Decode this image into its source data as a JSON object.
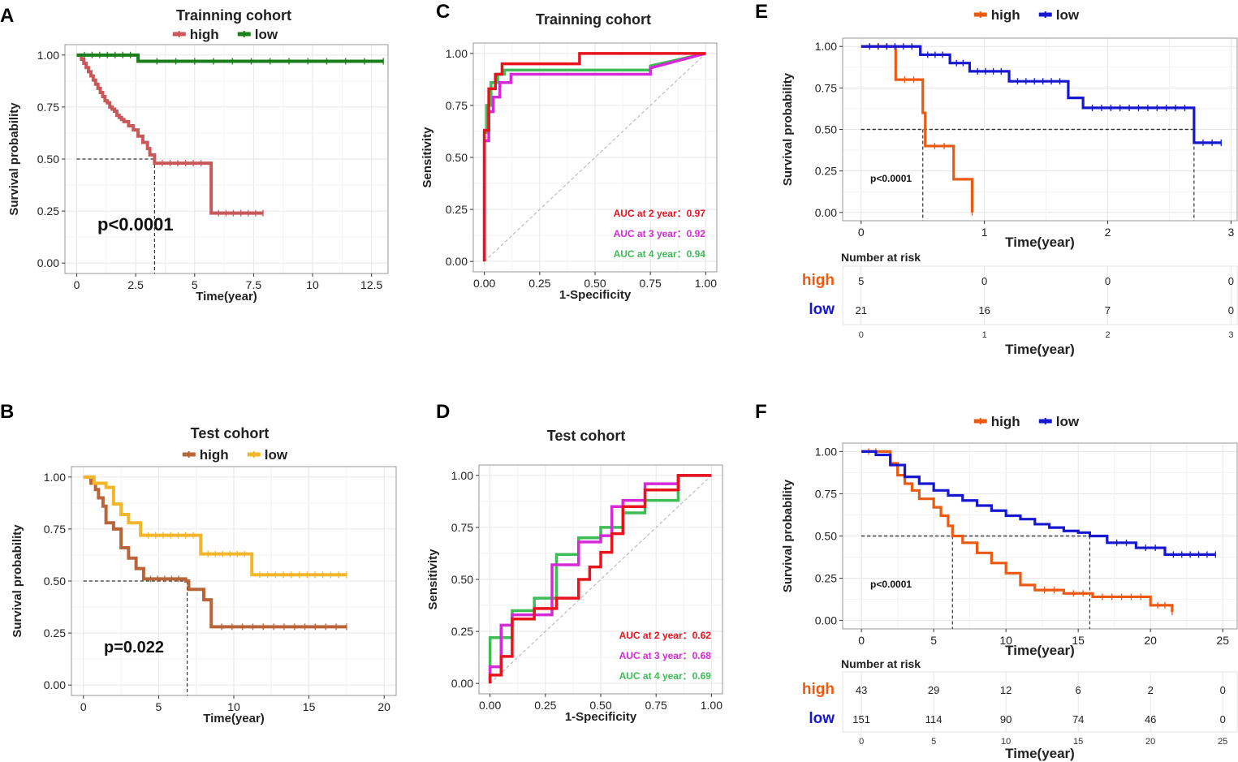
{
  "figure": {
    "panels": {
      "A": {
        "label": "A"
      },
      "B": {
        "label": "B"
      },
      "C": {
        "label": "C"
      },
      "D": {
        "label": "D"
      },
      "E": {
        "label": "E"
      },
      "F": {
        "label": "F"
      }
    }
  },
  "colors": {
    "A_high": "#c9585a",
    "A_low": "#1a7f1a",
    "B_high": "#b8653a",
    "B_low": "#f3b52a",
    "roc_2": "#e8131d",
    "roc_3": "#d62ad8",
    "roc_4": "#3ebd57",
    "E_high": "#ec5a12",
    "E_low": "#1717d0",
    "median": "#333333",
    "diag": "#bbbbbb"
  },
  "chart_data": [
    {
      "panel": "A",
      "type": "line",
      "title": "Trainning cohort",
      "legend": [
        "high",
        "low"
      ],
      "xlabel": "Time(year)",
      "ylabel": "Survival probability",
      "xlim": [
        -0.5,
        13.2
      ],
      "ylim": [
        -0.05,
        1.05
      ],
      "xticks": [
        "0",
        "2.5",
        "5",
        "7.5",
        "10",
        "12.5"
      ],
      "xtick_values": [
        0,
        2.5,
        5,
        7.5,
        10,
        12.5
      ],
      "yticks": [
        "0.00",
        "0.25",
        "0.50",
        "0.75",
        "1.00"
      ],
      "ytick_values": [
        0,
        0.25,
        0.5,
        0.75,
        1
      ],
      "pvalue": "p<0.0001",
      "median_x": [
        3.3
      ],
      "series": [
        {
          "name": "high",
          "x": [
            0,
            0.2,
            0.3,
            0.4,
            0.5,
            0.6,
            0.7,
            0.8,
            0.9,
            1.0,
            1.1,
            1.2,
            1.3,
            1.4,
            1.5,
            1.6,
            1.7,
            1.8,
            1.9,
            2.0,
            2.2,
            2.4,
            2.6,
            2.8,
            3.0,
            3.1,
            3.3,
            5.6,
            5.7,
            7.9
          ],
          "y": [
            1.0,
            0.98,
            0.96,
            0.94,
            0.92,
            0.9,
            0.88,
            0.86,
            0.84,
            0.82,
            0.8,
            0.78,
            0.77,
            0.75,
            0.74,
            0.73,
            0.71,
            0.7,
            0.69,
            0.68,
            0.66,
            0.64,
            0.61,
            0.58,
            0.55,
            0.52,
            0.48,
            0.48,
            0.24,
            0.24
          ]
        },
        {
          "name": "low",
          "x": [
            0,
            2.6,
            2.6,
            13.0
          ],
          "y": [
            1.0,
            1.0,
            0.97,
            0.97
          ]
        }
      ]
    },
    {
      "panel": "B",
      "type": "line",
      "title": "Test cohort",
      "legend": [
        "high",
        "low"
      ],
      "xlabel": "Time(year)",
      "ylabel": "Survival probability",
      "xlim": [
        -0.8,
        20.8
      ],
      "ylim": [
        -0.05,
        1.05
      ],
      "xticks": [
        "0",
        "5",
        "10",
        "15",
        "20"
      ],
      "xtick_values": [
        0,
        5,
        10,
        15,
        20
      ],
      "yticks": [
        "0.00",
        "0.25",
        "0.50",
        "0.75",
        "1.00"
      ],
      "ytick_values": [
        0,
        0.25,
        0.5,
        0.75,
        1
      ],
      "pvalue": "p=0.022",
      "median_x": [
        6.9
      ],
      "series": [
        {
          "name": "high",
          "x": [
            0,
            0.5,
            0.8,
            1.0,
            1.3,
            1.5,
            2.0,
            2.5,
            3.0,
            3.5,
            4.0,
            6.8,
            7.0,
            8.0,
            8.5,
            17.5
          ],
          "y": [
            1.0,
            0.97,
            0.94,
            0.9,
            0.86,
            0.78,
            0.75,
            0.66,
            0.61,
            0.56,
            0.51,
            0.5,
            0.46,
            0.41,
            0.28,
            0.28
          ]
        },
        {
          "name": "low",
          "x": [
            0,
            0.7,
            1.5,
            2.0,
            2.5,
            3.0,
            3.8,
            7.8,
            11.2,
            17.5
          ],
          "y": [
            1.0,
            0.97,
            0.95,
            0.87,
            0.82,
            0.78,
            0.72,
            0.63,
            0.53,
            0.53
          ]
        }
      ]
    },
    {
      "panel": "C",
      "type": "line",
      "title": "Trainning cohort",
      "xlabel": "1-Specificity",
      "ylabel": "Sensitivity",
      "xlim": [
        -0.05,
        1.05
      ],
      "ylim": [
        -0.05,
        1.05
      ],
      "xticks": [
        "0.00",
        "0.25",
        "0.50",
        "0.75",
        "1.00"
      ],
      "xtick_values": [
        0,
        0.25,
        0.5,
        0.75,
        1
      ],
      "yticks": [
        "0.00",
        "0.25",
        "0.50",
        "0.75",
        "1.00"
      ],
      "ytick_values": [
        0,
        0.25,
        0.5,
        0.75,
        1
      ],
      "auc_labels": [
        "AUC at 2 year：0.97",
        "AUC at 3 year：0.92",
        "AUC at 4 year：0.94"
      ],
      "series": [
        {
          "name": "AUC at 2 year",
          "auc": 0.97,
          "x": [
            0,
            0,
            0.02,
            0.02,
            0.05,
            0.05,
            0.08,
            0.08,
            0.43,
            0.43,
            0.75,
            0.75,
            1.0
          ],
          "y": [
            0,
            0.63,
            0.63,
            0.83,
            0.83,
            0.9,
            0.9,
            0.95,
            0.95,
            1.0,
            1.0,
            1.0,
            1.0
          ]
        },
        {
          "name": "AUC at 3 year",
          "auc": 0.92,
          "x": [
            0,
            0,
            0.02,
            0.02,
            0.04,
            0.04,
            0.07,
            0.07,
            0.12,
            0.12,
            0.75,
            0.75,
            1.0
          ],
          "y": [
            0,
            0.58,
            0.58,
            0.72,
            0.72,
            0.79,
            0.79,
            0.86,
            0.86,
            0.9,
            0.9,
            0.93,
            1.0
          ]
        },
        {
          "name": "AUC at 4 year",
          "auc": 0.94,
          "x": [
            0,
            0,
            0.01,
            0.01,
            0.03,
            0.03,
            0.06,
            0.06,
            0.09,
            0.09,
            0.75,
            0.75,
            1.0
          ],
          "y": [
            0,
            0.62,
            0.62,
            0.75,
            0.75,
            0.86,
            0.86,
            0.9,
            0.9,
            0.92,
            0.92,
            0.94,
            1.0
          ]
        }
      ]
    },
    {
      "panel": "D",
      "type": "line",
      "title": "Test cohort",
      "xlabel": "1-Specificity",
      "ylabel": "Sensitivity",
      "xlim": [
        -0.05,
        1.05
      ],
      "ylim": [
        -0.05,
        1.05
      ],
      "xticks": [
        "0.00",
        "0.25",
        "0.50",
        "0.75",
        "1.00"
      ],
      "xtick_values": [
        0,
        0.25,
        0.5,
        0.75,
        1
      ],
      "yticks": [
        "0.00",
        "0.25",
        "0.50",
        "0.75",
        "1.00"
      ],
      "ytick_values": [
        0,
        0.25,
        0.5,
        0.75,
        1
      ],
      "auc_labels": [
        "AUC at 2 year：0.62",
        "AUC at 3 year：0.68",
        "AUC at 4 year：0.69"
      ],
      "series": [
        {
          "name": "AUC at 2 year",
          "auc": 0.62,
          "x": [
            0,
            0,
            0.05,
            0.05,
            0.1,
            0.1,
            0.2,
            0.2,
            0.3,
            0.3,
            0.4,
            0.4,
            0.45,
            0.45,
            0.5,
            0.5,
            0.55,
            0.55,
            0.6,
            0.6,
            0.7,
            0.7,
            0.85,
            0.85,
            1.0
          ],
          "y": [
            0,
            0.04,
            0.04,
            0.13,
            0.13,
            0.31,
            0.31,
            0.36,
            0.36,
            0.41,
            0.41,
            0.5,
            0.5,
            0.56,
            0.56,
            0.63,
            0.63,
            0.72,
            0.72,
            0.85,
            0.85,
            0.93,
            0.93,
            1.0,
            1.0
          ]
        },
        {
          "name": "AUC at 3 year",
          "auc": 0.68,
          "x": [
            0,
            0,
            0.05,
            0.05,
            0.1,
            0.1,
            0.28,
            0.28,
            0.4,
            0.4,
            0.5,
            0.5,
            0.55,
            0.55,
            0.6,
            0.6,
            0.7,
            0.7,
            0.85,
            0.85,
            1.0
          ],
          "y": [
            0,
            0.08,
            0.08,
            0.28,
            0.28,
            0.33,
            0.33,
            0.57,
            0.57,
            0.68,
            0.68,
            0.71,
            0.71,
            0.85,
            0.85,
            0.88,
            0.88,
            0.96,
            0.96,
            1.0,
            1.0
          ]
        },
        {
          "name": "AUC at 4 year",
          "auc": 0.69,
          "x": [
            0,
            0,
            0.1,
            0.1,
            0.2,
            0.2,
            0.3,
            0.3,
            0.4,
            0.4,
            0.5,
            0.5,
            0.6,
            0.6,
            0.7,
            0.7,
            0.85,
            0.85,
            1.0
          ],
          "y": [
            0,
            0.22,
            0.22,
            0.35,
            0.35,
            0.41,
            0.41,
            0.62,
            0.62,
            0.7,
            0.7,
            0.75,
            0.75,
            0.82,
            0.82,
            0.88,
            0.88,
            1.0,
            1.0
          ]
        }
      ]
    },
    {
      "panel": "E",
      "type": "line",
      "legend": [
        "high",
        "low"
      ],
      "xlabel": "Time(year)",
      "ylabel": "Survival probability",
      "xlim": [
        -0.15,
        3.05
      ],
      "ylim": [
        -0.05,
        1.05
      ],
      "xticks": [
        "0",
        "1",
        "2",
        "3"
      ],
      "xtick_values": [
        0,
        1,
        2,
        3
      ],
      "yticks": [
        "0.00",
        "0.25",
        "0.50",
        "0.75",
        "1.00"
      ],
      "ytick_values": [
        0,
        0.25,
        0.5,
        0.75,
        1
      ],
      "pvalue": "p<0.0001",
      "median_x": [
        0.5,
        2.7
      ],
      "risk_table": {
        "title": "Number at risk",
        "groups": [
          "high",
          "low"
        ],
        "times": [
          "0",
          "1",
          "2",
          "3"
        ],
        "counts": {
          "high": [
            "5",
            "0",
            "0",
            "0"
          ],
          "low": [
            "21",
            "16",
            "7",
            "0"
          ]
        },
        "xlabel": "Time(year)"
      },
      "series": [
        {
          "name": "high",
          "x": [
            0,
            0.28,
            0.28,
            0.5,
            0.5,
            0.52,
            0.52,
            0.75,
            0.75,
            0.9,
            0.9
          ],
          "y": [
            1.0,
            1.0,
            0.8,
            0.8,
            0.6,
            0.6,
            0.4,
            0.4,
            0.2,
            0.2,
            0.0
          ]
        },
        {
          "name": "low",
          "x": [
            0,
            0.48,
            0.48,
            0.72,
            0.72,
            0.88,
            0.88,
            1.2,
            1.2,
            1.68,
            1.68,
            1.8,
            1.8,
            2.7,
            2.7,
            2.92
          ],
          "y": [
            1.0,
            1.0,
            0.95,
            0.95,
            0.9,
            0.9,
            0.85,
            0.85,
            0.79,
            0.79,
            0.69,
            0.69,
            0.63,
            0.63,
            0.42,
            0.42
          ]
        }
      ]
    },
    {
      "panel": "F",
      "type": "line",
      "legend": [
        "high",
        "low"
      ],
      "xlabel": "Time(year)",
      "ylabel": "Survival probability",
      "xlim": [
        -1.3,
        26
      ],
      "ylim": [
        -0.05,
        1.05
      ],
      "xticks": [
        "0",
        "5",
        "10",
        "15",
        "20",
        "25"
      ],
      "xtick_values": [
        0,
        5,
        10,
        15,
        20,
        25
      ],
      "yticks": [
        "0.00",
        "0.25",
        "0.50",
        "0.75",
        "1.00"
      ],
      "ytick_values": [
        0,
        0.25,
        0.5,
        0.75,
        1
      ],
      "pvalue": "p<0.0001",
      "median_x": [
        6.3,
        15.8
      ],
      "risk_table": {
        "title": "Number at risk",
        "groups": [
          "high",
          "low"
        ],
        "times": [
          "0",
          "5",
          "10",
          "15",
          "20",
          "25"
        ],
        "counts": {
          "high": [
            "43",
            "29",
            "12",
            "6",
            "2",
            "0"
          ],
          "low": [
            "151",
            "114",
            "90",
            "74",
            "46",
            "0"
          ]
        },
        "xlabel": "Time(year)"
      },
      "series": [
        {
          "name": "high",
          "x": [
            0,
            1.5,
            2,
            2.5,
            3,
            3.5,
            4,
            5,
            5.5,
            6,
            6.3,
            7,
            8,
            9,
            10,
            11,
            12,
            14,
            16,
            20,
            21.5
          ],
          "y": [
            1.0,
            1.0,
            0.93,
            0.86,
            0.81,
            0.77,
            0.72,
            0.67,
            0.62,
            0.56,
            0.5,
            0.46,
            0.4,
            0.34,
            0.28,
            0.21,
            0.18,
            0.16,
            0.14,
            0.09,
            0.05
          ]
        },
        {
          "name": "low",
          "x": [
            0,
            1,
            2,
            3,
            4,
            5,
            6,
            7,
            8,
            9,
            10,
            11,
            12,
            13,
            14,
            15,
            15.8,
            17,
            19,
            21,
            24.5
          ],
          "y": [
            1.0,
            0.98,
            0.92,
            0.85,
            0.81,
            0.77,
            0.74,
            0.71,
            0.68,
            0.65,
            0.62,
            0.6,
            0.57,
            0.55,
            0.53,
            0.52,
            0.5,
            0.46,
            0.43,
            0.39,
            0.39
          ]
        }
      ]
    }
  ]
}
